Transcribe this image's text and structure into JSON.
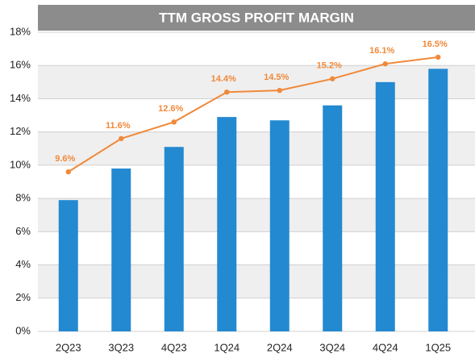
{
  "chart_data": {
    "type": "bar",
    "title": "TTM GROSS PROFIT MARGIN",
    "categories": [
      "2Q23",
      "3Q23",
      "4Q23",
      "1Q24",
      "2Q24",
      "3Q24",
      "4Q24",
      "1Q25"
    ],
    "series": [
      {
        "type": "bar",
        "color": "#2389d1",
        "values": [
          7.9,
          9.8,
          11.1,
          12.9,
          12.7,
          13.6,
          15.0,
          15.8
        ]
      },
      {
        "type": "line",
        "color": "#f0893a",
        "values": [
          9.6,
          11.6,
          12.6,
          14.4,
          14.5,
          15.2,
          16.1,
          16.5
        ],
        "value_labels": [
          "9.6%",
          "11.6%",
          "12.6%",
          "14.4%",
          "14.5%",
          "15.2%",
          "16.1%",
          "16.5%"
        ]
      }
    ],
    "ylim": [
      0,
      18
    ],
    "yticks": [
      {
        "value": 0,
        "label": "0%"
      },
      {
        "value": 2,
        "label": "2%"
      },
      {
        "value": 4,
        "label": "4%"
      },
      {
        "value": 6,
        "label": "6%"
      },
      {
        "value": 8,
        "label": "8%"
      },
      {
        "value": 10,
        "label": "10%"
      },
      {
        "value": 12,
        "label": "12%"
      },
      {
        "value": 14,
        "label": "14%"
      },
      {
        "value": 16,
        "label": "16%"
      },
      {
        "value": 18,
        "label": "18%"
      }
    ],
    "grid": true
  }
}
